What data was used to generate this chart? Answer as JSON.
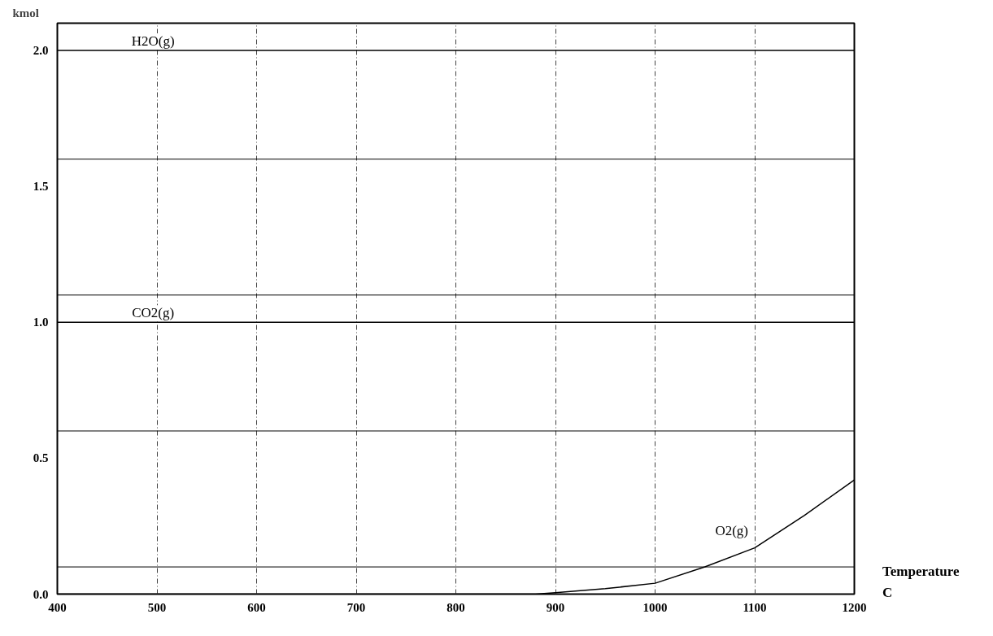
{
  "chart_data": {
    "type": "line",
    "xlabel": "Temperature\nC",
    "ylabel": "kmol",
    "xlim": [
      400,
      1200
    ],
    "xticks": [
      400,
      500,
      600,
      700,
      800,
      900,
      1000,
      1100,
      1200
    ],
    "ylim": [
      0,
      2.1
    ],
    "yticks": [
      {
        "value": 0,
        "label": "0.0"
      },
      0.5,
      {
        "value": 1,
        "label": "1.0"
      },
      1.5,
      {
        "value": 2,
        "label": "2.0"
      }
    ],
    "grid": "x",
    "legend": false,
    "marker": "none",
    "line_style": "solid",
    "ref_lines": [
      {
        "axis": "y",
        "value": 0.1,
        "label": null,
        "color": "#000000"
      },
      {
        "axis": "y",
        "value": 0.6,
        "label": null,
        "color": "#000000"
      },
      {
        "axis": "y",
        "value": 1.1,
        "label": null,
        "color": "#000000"
      },
      {
        "axis": "y",
        "value": 1.6,
        "label": null,
        "color": "#000000"
      }
    ],
    "series": [
      {
        "name": "H2O(g)",
        "color": "#000000",
        "x": [
          400,
          1200
        ],
        "values": [
          2.0,
          2.0
        ]
      },
      {
        "name": "CO2(g)",
        "color": "#000000",
        "x": [
          400,
          1200
        ],
        "values": [
          1.0,
          1.0
        ]
      },
      {
        "name": "O2(g)",
        "color": "#000000",
        "x": [
          400,
          880,
          900,
          950,
          1000,
          1050,
          1100,
          1150,
          1200
        ],
        "values": [
          0,
          0,
          0.005,
          0.02,
          0.04,
          0.1,
          0.17,
          0.29,
          0.42
        ]
      }
    ]
  }
}
